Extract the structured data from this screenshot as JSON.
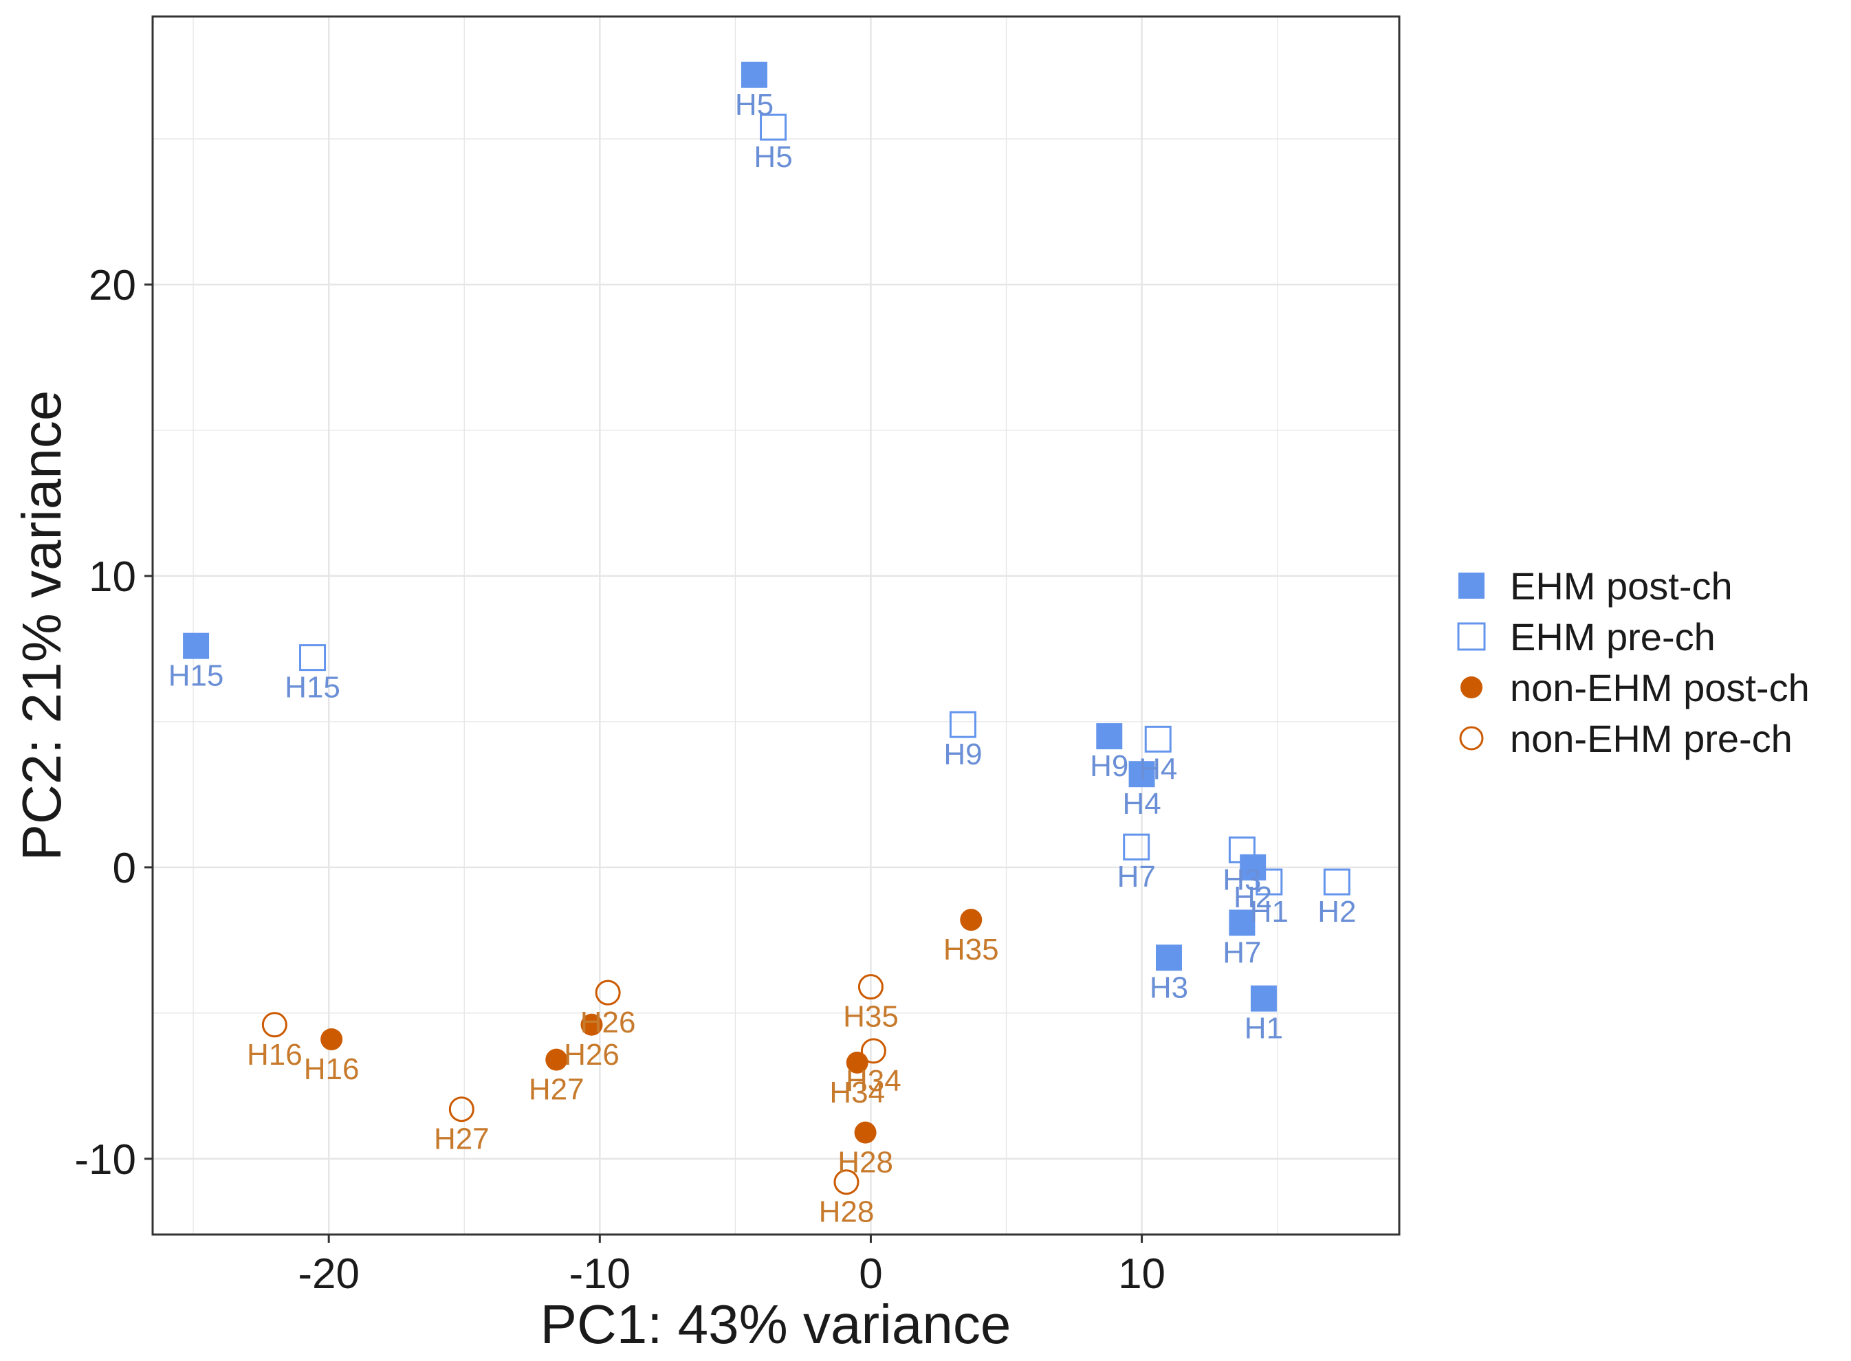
{
  "chart_data": {
    "type": "scatter",
    "title": "",
    "xlabel": "PC1: 43% variance",
    "ylabel": "PC2: 21% variance",
    "xlim": [
      -26.5,
      19.5
    ],
    "ylim": [
      -12.6,
      29.2
    ],
    "xticks": [
      -20,
      -10,
      0,
      10
    ],
    "yticks": [
      -10,
      0,
      10,
      20
    ],
    "xtick_labels": [
      "-20",
      "-10",
      "0",
      "10"
    ],
    "ytick_labels": [
      "-10",
      "0",
      "10",
      "20"
    ],
    "grid": true,
    "legend_position": "right",
    "colors": {
      "ehm": "#6495ED",
      "ehm_text": "#6A8FD6",
      "non_ehm": "#CC5A00",
      "non_ehm_text": "#C77A2C",
      "grid": "#e6e6e6",
      "panel_border": "#333333"
    },
    "legend": [
      {
        "label": "EHM post-ch",
        "group": "ehm",
        "shape": "square",
        "filled": true
      },
      {
        "label": "EHM pre-ch",
        "group": "ehm",
        "shape": "square",
        "filled": false
      },
      {
        "label": "non-EHM post-ch",
        "group": "non_ehm",
        "shape": "circle",
        "filled": true
      },
      {
        "label": "non-EHM pre-ch",
        "group": "non_ehm",
        "shape": "circle",
        "filled": false
      }
    ],
    "series": [
      {
        "name": "EHM post-ch",
        "group": "ehm",
        "shape": "square",
        "filled": true,
        "points": [
          {
            "x": -4.3,
            "y": 27.2,
            "label": "H5"
          },
          {
            "x": -24.9,
            "y": 7.6,
            "label": "H15"
          },
          {
            "x": 8.8,
            "y": 4.5,
            "label": "H9"
          },
          {
            "x": 10.0,
            "y": 3.2,
            "label": "H4"
          },
          {
            "x": 14.1,
            "y": 0.0,
            "label": "H2"
          },
          {
            "x": 13.7,
            "y": -1.9,
            "label": "H7"
          },
          {
            "x": 11.0,
            "y": -3.1,
            "label": "H3"
          },
          {
            "x": 14.5,
            "y": -4.5,
            "label": "H1"
          }
        ]
      },
      {
        "name": "EHM pre-ch",
        "group": "ehm",
        "shape": "square",
        "filled": false,
        "points": [
          {
            "x": -3.6,
            "y": 25.4,
            "label": "H5"
          },
          {
            "x": -20.6,
            "y": 7.2,
            "label": "H15"
          },
          {
            "x": 3.4,
            "y": 4.9,
            "label": "H9"
          },
          {
            "x": 10.6,
            "y": 4.4,
            "label": "H4"
          },
          {
            "x": 9.8,
            "y": 0.7,
            "label": "H7"
          },
          {
            "x": 13.7,
            "y": 0.6,
            "label": "H3"
          },
          {
            "x": 14.7,
            "y": -0.5,
            "label": "H1"
          },
          {
            "x": 17.2,
            "y": -0.5,
            "label": "H2"
          }
        ]
      },
      {
        "name": "non-EHM post-ch",
        "group": "non_ehm",
        "shape": "circle",
        "filled": true,
        "points": [
          {
            "x": 3.7,
            "y": -1.8,
            "label": "H35"
          },
          {
            "x": -10.3,
            "y": -5.4,
            "label": "H26"
          },
          {
            "x": -19.9,
            "y": -5.9,
            "label": "H16"
          },
          {
            "x": -11.6,
            "y": -6.6,
            "label": "H27"
          },
          {
            "x": -0.5,
            "y": -6.7,
            "label": "H34"
          },
          {
            "x": -0.2,
            "y": -9.1,
            "label": "H28"
          }
        ]
      },
      {
        "name": "non-EHM pre-ch",
        "group": "non_ehm",
        "shape": "circle",
        "filled": false,
        "points": [
          {
            "x": 0.0,
            "y": -4.1,
            "label": "H35"
          },
          {
            "x": -9.7,
            "y": -4.3,
            "label": "H26"
          },
          {
            "x": -22.0,
            "y": -5.4,
            "label": "H16"
          },
          {
            "x": 0.1,
            "y": -6.3,
            "label": "H34"
          },
          {
            "x": -15.1,
            "y": -8.3,
            "label": "H27"
          },
          {
            "x": -0.9,
            "y": -10.8,
            "label": "H28"
          }
        ]
      }
    ]
  }
}
